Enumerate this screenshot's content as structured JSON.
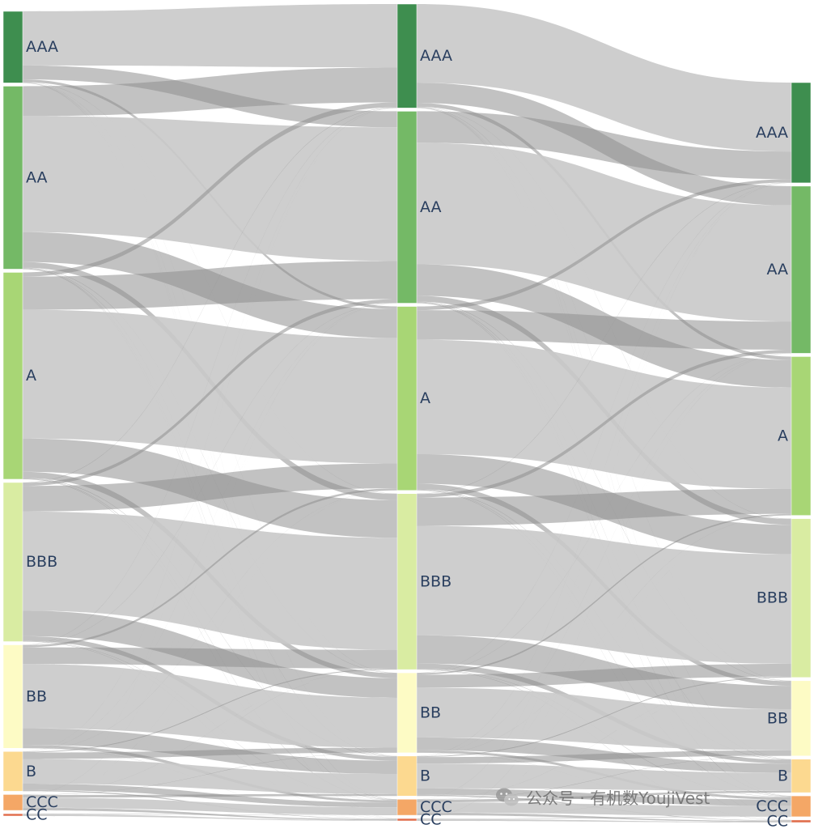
{
  "chart_data": {
    "type": "sankey",
    "columns": [
      {
        "nodes": [
          {
            "label": "AAA",
            "value": 9,
            "color": "#3e8e4f"
          },
          {
            "label": "AA",
            "value": 23,
            "color": "#74b966"
          },
          {
            "label": "A",
            "value": 26,
            "color": "#a8d675"
          },
          {
            "label": "BBB",
            "value": 20,
            "color": "#d9eca2"
          },
          {
            "label": "BB",
            "value": 13,
            "color": "#fdfbc5"
          },
          {
            "label": "B",
            "value": 5,
            "color": "#fcd990"
          },
          {
            "label": "CCC",
            "value": 2,
            "color": "#f4a766"
          },
          {
            "label": "CC",
            "value": 0.3,
            "color": "#e06d4b"
          }
        ]
      },
      {
        "nodes": [
          {
            "label": "AAA",
            "value": 13,
            "color": "#3e8e4f"
          },
          {
            "label": "AA",
            "value": 24,
            "color": "#74b966"
          },
          {
            "label": "A",
            "value": 23,
            "color": "#a8d675"
          },
          {
            "label": "BBB",
            "value": 22,
            "color": "#d9eca2"
          },
          {
            "label": "BB",
            "value": 10,
            "color": "#fdfbc5"
          },
          {
            "label": "B",
            "value": 5,
            "color": "#fcd990"
          },
          {
            "label": "CCC",
            "value": 2,
            "color": "#f4a766"
          },
          {
            "label": "CC",
            "value": 0.3,
            "color": "#e06d4b"
          }
        ]
      },
      {
        "nodes": [
          {
            "label": "AAA",
            "value": 12,
            "color": "#3e8e4f"
          },
          {
            "label": "AA",
            "value": 20,
            "color": "#74b966"
          },
          {
            "label": "A",
            "value": 19,
            "color": "#a8d675"
          },
          {
            "label": "BBB",
            "value": 19,
            "color": "#d9eca2"
          },
          {
            "label": "BB",
            "value": 9,
            "color": "#fdfbc5"
          },
          {
            "label": "B",
            "value": 4,
            "color": "#fcd990"
          },
          {
            "label": "CCC",
            "value": 2.5,
            "color": "#f4a766"
          },
          {
            "label": "CC",
            "value": 0.3,
            "color": "#e06d4b"
          }
        ]
      }
    ],
    "link_color": "#a6a6a6"
  },
  "watermark": {
    "text": "公众号 · 有机数YoujiVest",
    "icon": "wechat-icon"
  }
}
